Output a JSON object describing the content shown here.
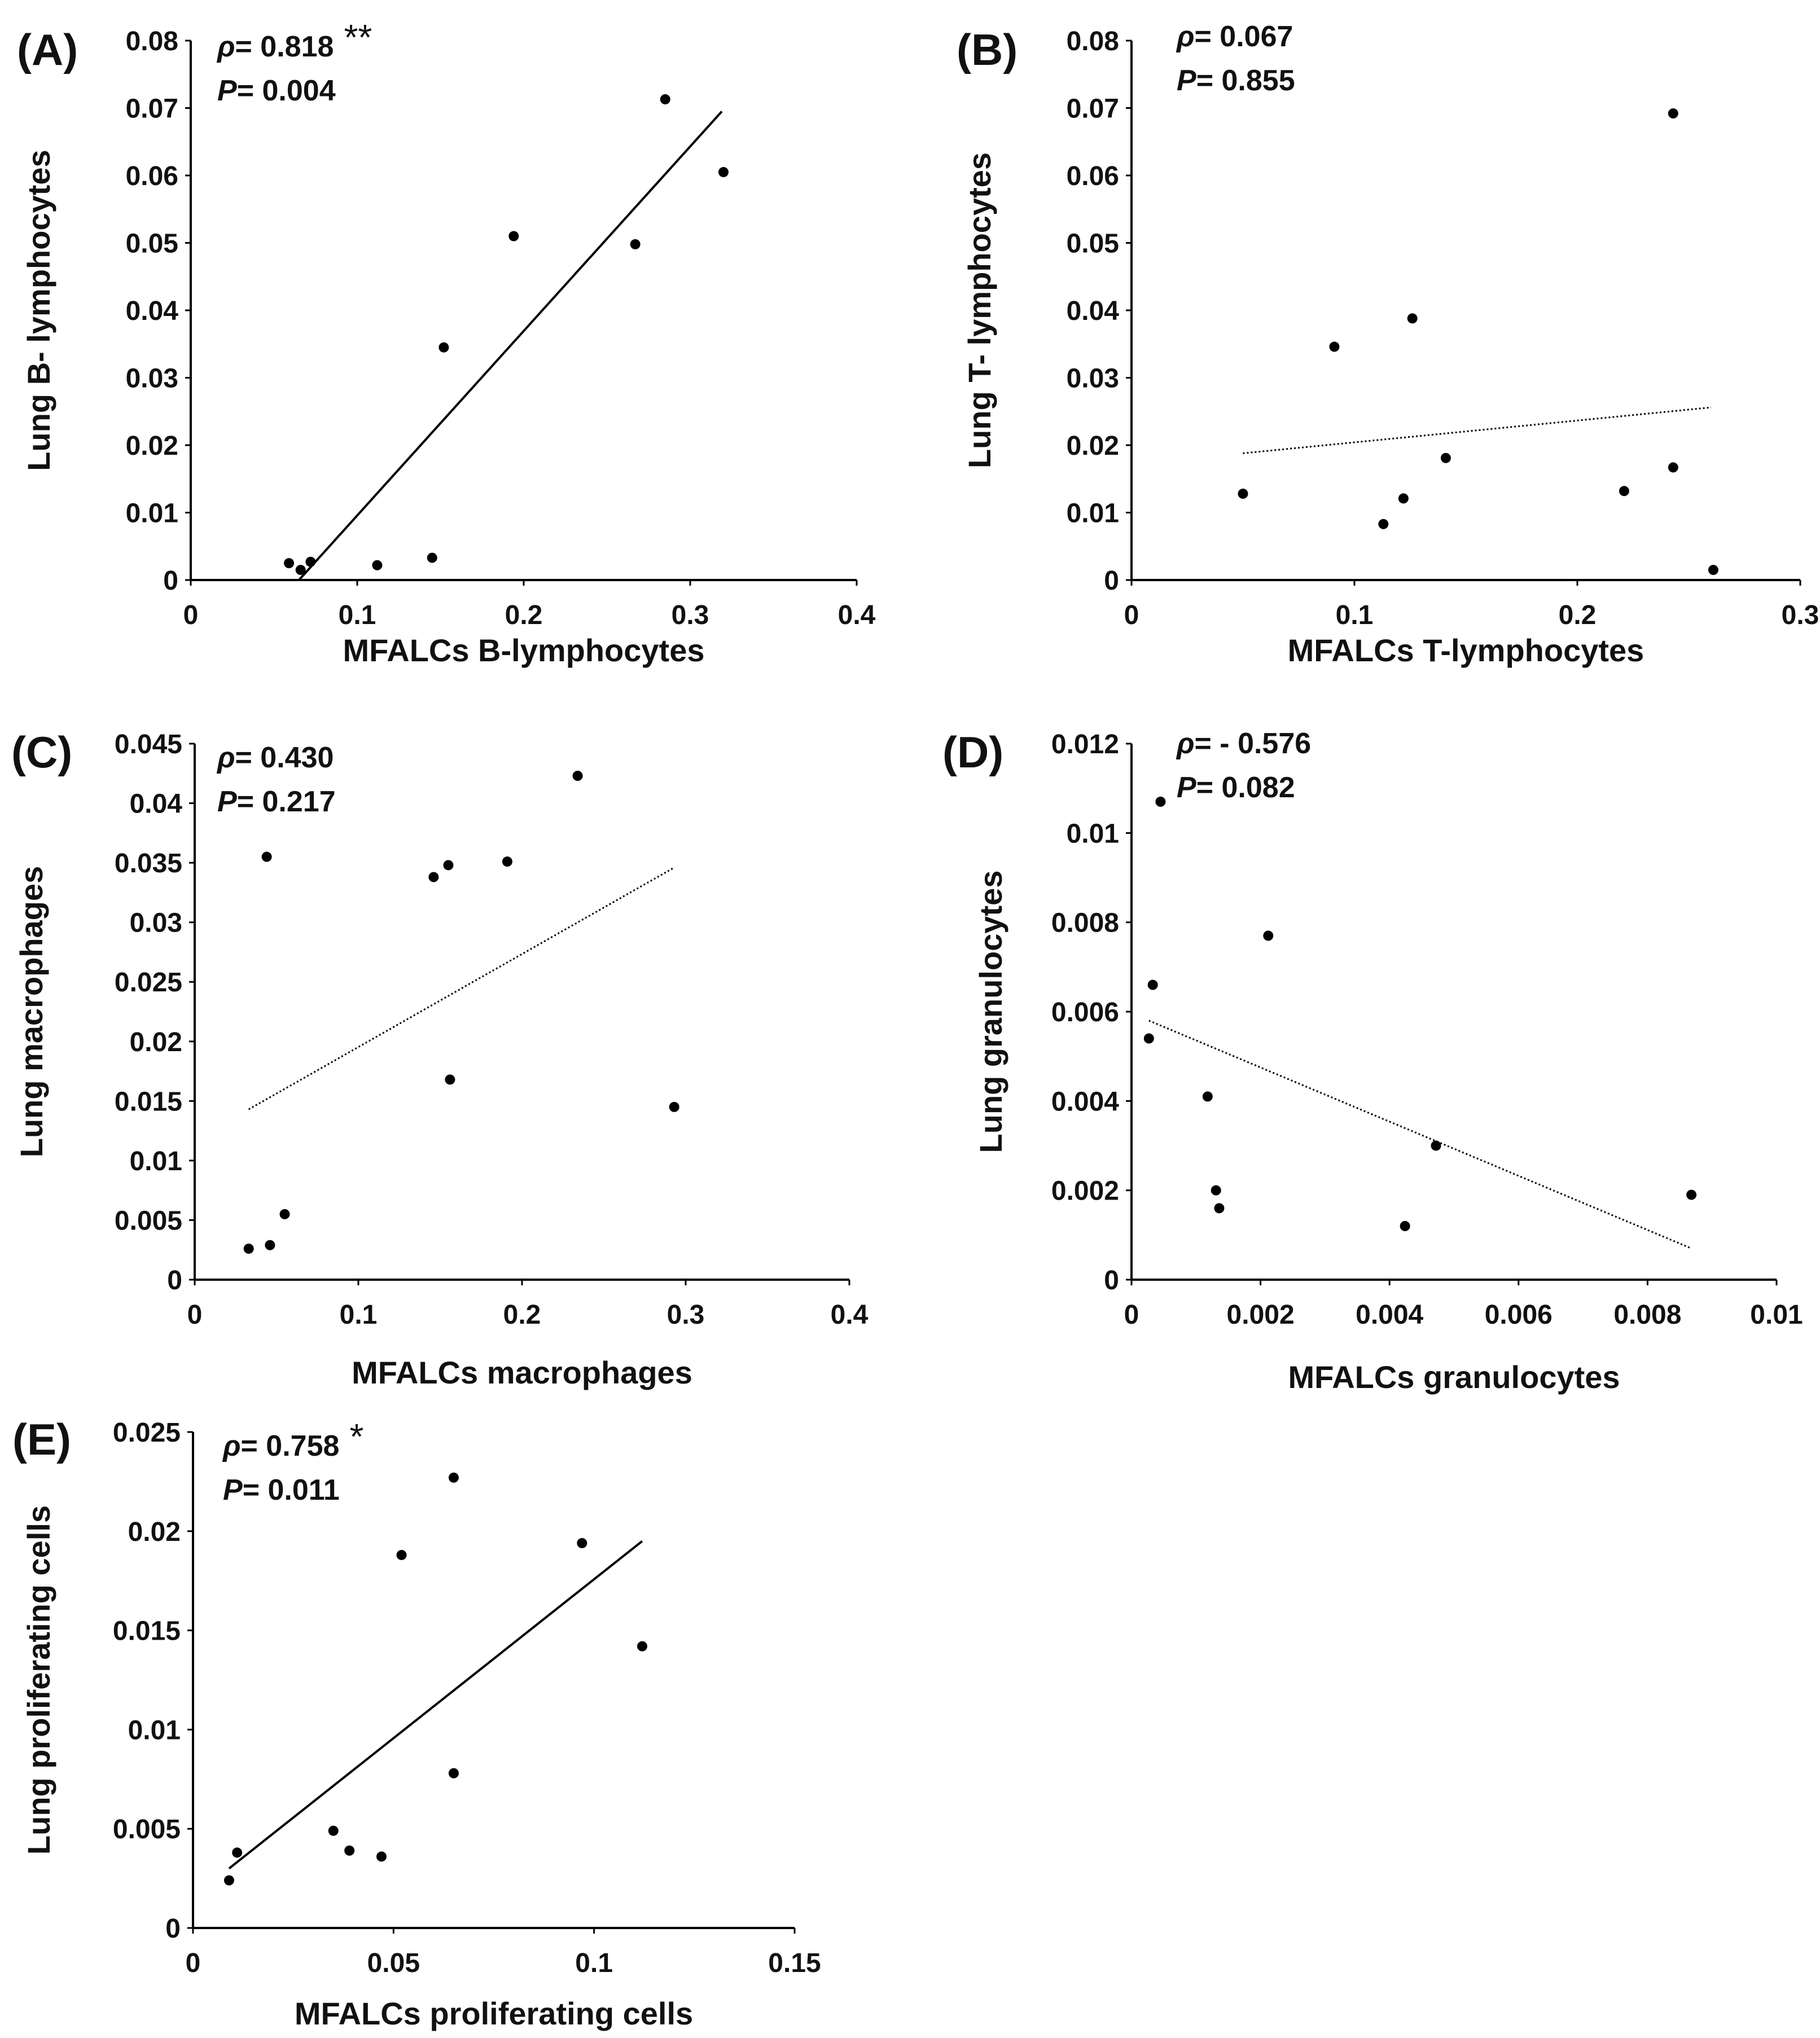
{
  "figure": {
    "background": "#ffffff",
    "point_color": "#000000"
  },
  "chart_data": [
    {
      "id": "A",
      "type": "scatter",
      "panel_label": "(A)",
      "xlabel": "MFALCs B-lymphocytes",
      "ylabel": "Lung B- lymphocytes",
      "xlim": [
        0,
        0.4
      ],
      "ylim": [
        0,
        0.08
      ],
      "xticks": [
        0,
        0.1,
        0.2,
        0.3,
        0.4
      ],
      "xtick_labels": [
        "0",
        "0.1",
        "0.2",
        "0.3",
        "0.4"
      ],
      "yticks": [
        0,
        0.01,
        0.02,
        0.03,
        0.04,
        0.05,
        0.06,
        0.07,
        0.08
      ],
      "ytick_labels": [
        "0",
        "0.01",
        "0.02",
        "0.03",
        "0.04",
        "0.05",
        "0.06",
        "0.07",
        "0.08"
      ],
      "x": [
        0.059,
        0.066,
        0.072,
        0.112,
        0.145,
        0.152,
        0.194,
        0.267,
        0.285,
        0.32
      ],
      "y": [
        0.0025,
        0.0015,
        0.0027,
        0.0022,
        0.0033,
        0.0345,
        0.051,
        0.0498,
        0.0713,
        0.0605
      ],
      "trendline": {
        "style": "solid",
        "x": [
          0.065,
          0.319
        ],
        "y": [
          0,
          0.0695
        ]
      },
      "stats": {
        "rho_symbol": "ρ",
        "rho_value": "= 0.818",
        "significance": "**",
        "p_symbol": "P",
        "p_value": "= 0.004"
      }
    },
    {
      "id": "B",
      "type": "scatter",
      "panel_label": "(B)",
      "xlabel": "MFALCs T-lymphocytes",
      "ylabel": "Lung T- lymphocytes",
      "xlim": [
        0,
        0.3
      ],
      "ylim": [
        0,
        0.08
      ],
      "xticks": [
        0,
        0.1,
        0.2,
        0.3
      ],
      "xtick_labels": [
        "0",
        "0.1",
        "0.2",
        "0.3"
      ],
      "yticks": [
        0,
        0.01,
        0.02,
        0.03,
        0.04,
        0.05,
        0.06,
        0.07,
        0.08
      ],
      "ytick_labels": [
        "0",
        "0.01",
        "0.02",
        "0.03",
        "0.04",
        "0.05",
        "0.06",
        "0.07",
        "0.08"
      ],
      "x": [
        0.05,
        0.091,
        0.113,
        0.122,
        0.126,
        0.141,
        0.221,
        0.243,
        0.243,
        0.261
      ],
      "y": [
        0.0128,
        0.0346,
        0.0083,
        0.0121,
        0.0388,
        0.0181,
        0.0132,
        0.0167,
        0.0692,
        0.0015
      ],
      "trendline": {
        "style": "dotted",
        "x": [
          0.05,
          0.26
        ],
        "y": [
          0.0188,
          0.0256
        ]
      },
      "stats": {
        "rho_symbol": "ρ",
        "rho_value": "= 0.067",
        "significance": "",
        "p_symbol": "P",
        "p_value": "= 0.855"
      }
    },
    {
      "id": "C",
      "type": "scatter",
      "panel_label": "(C)",
      "xlabel": "MFALCs macrophages",
      "ylabel": "Lung macrophages",
      "xlim": [
        0,
        0.4
      ],
      "ylim": [
        0,
        0.045
      ],
      "xticks": [
        0,
        0.1,
        0.2,
        0.3,
        0.4
      ],
      "xtick_labels": [
        "0",
        "0.1",
        "0.2",
        "0.3",
        "0.4"
      ],
      "yticks": [
        0,
        0.005,
        0.01,
        0.015,
        0.02,
        0.025,
        0.03,
        0.035,
        0.04,
        0.045
      ],
      "ytick_labels": [
        "0",
        "0.005",
        "0.01",
        "0.015",
        "0.02",
        "0.025",
        "0.03",
        "0.035",
        "0.04",
        "0.045"
      ],
      "x": [
        0.033,
        0.046,
        0.055,
        0.044,
        0.146,
        0.155,
        0.156,
        0.191,
        0.234,
        0.293
      ],
      "y": [
        0.0026,
        0.0029,
        0.0055,
        0.0355,
        0.0338,
        0.0348,
        0.0168,
        0.0351,
        0.0423,
        0.0145
      ],
      "trendline": {
        "style": "dotted",
        "x": [
          0.033,
          0.293
        ],
        "y": [
          0.0143,
          0.0346
        ]
      },
      "stats": {
        "rho_symbol": "ρ",
        "rho_value": "= 0.430",
        "significance": "",
        "p_symbol": "P",
        "p_value": "= 0.217"
      }
    },
    {
      "id": "D",
      "type": "scatter",
      "panel_label": "(D)",
      "xlabel": "MFALCs granulocytes",
      "ylabel": "Lung granulocytes",
      "xlim": [
        0,
        0.01
      ],
      "ylim": [
        0,
        0.012
      ],
      "xticks": [
        0,
        0.002,
        0.004,
        0.006,
        0.008,
        0.01
      ],
      "xtick_labels": [
        "0",
        "0.002",
        "0.004",
        "0.006",
        "0.008",
        "0.01"
      ],
      "yticks": [
        0,
        0.002,
        0.004,
        0.006,
        0.008,
        0.01,
        0.012
      ],
      "ytick_labels": [
        "0",
        "0.002",
        "0.004",
        "0.006",
        "0.008",
        "0.01",
        "0.012"
      ],
      "x": [
        0.00027,
        0.00033,
        0.00045,
        0.00118,
        0.00131,
        0.00136,
        0.00212,
        0.00424,
        0.00472,
        0.00868
      ],
      "y": [
        0.0054,
        0.0066,
        0.0107,
        0.0041,
        0.002,
        0.0016,
        0.0077,
        0.0012,
        0.003,
        0.0019
      ],
      "trendline": {
        "style": "dotted",
        "x": [
          0.00027,
          0.00868
        ],
        "y": [
          0.0058,
          0.0007
        ]
      },
      "stats": {
        "rho_symbol": "ρ",
        "rho_value": "= - 0.576",
        "significance": "",
        "p_symbol": "P",
        "p_value": "= 0.082"
      }
    },
    {
      "id": "E",
      "type": "scatter",
      "panel_label": "(E)",
      "xlabel": "MFALCs proliferating cells",
      "ylabel": "Lung proliferating cells",
      "xlim": [
        0,
        0.15
      ],
      "ylim": [
        0,
        0.025
      ],
      "xticks": [
        0,
        0.05,
        0.1,
        0.15
      ],
      "xtick_labels": [
        "0",
        "0.05",
        "0.1",
        "0.15"
      ],
      "yticks": [
        0,
        0.005,
        0.01,
        0.015,
        0.02,
        0.025
      ],
      "ytick_labels": [
        "0",
        "0.005",
        "0.01",
        "0.015",
        "0.02",
        "0.025"
      ],
      "x": [
        0.009,
        0.011,
        0.035,
        0.039,
        0.047,
        0.052,
        0.065,
        0.065,
        0.097,
        0.112
      ],
      "y": [
        0.0024,
        0.0038,
        0.0049,
        0.0039,
        0.0036,
        0.0188,
        0.0227,
        0.0078,
        0.0194,
        0.0142
      ],
      "trendline": {
        "style": "solid",
        "x": [
          0.009,
          0.112
        ],
        "y": [
          0.003,
          0.0195
        ]
      },
      "stats": {
        "rho_symbol": "ρ",
        "rho_value": "= 0.758",
        "significance": "*",
        "p_symbol": "P",
        "p_value": "= 0.011"
      }
    }
  ]
}
